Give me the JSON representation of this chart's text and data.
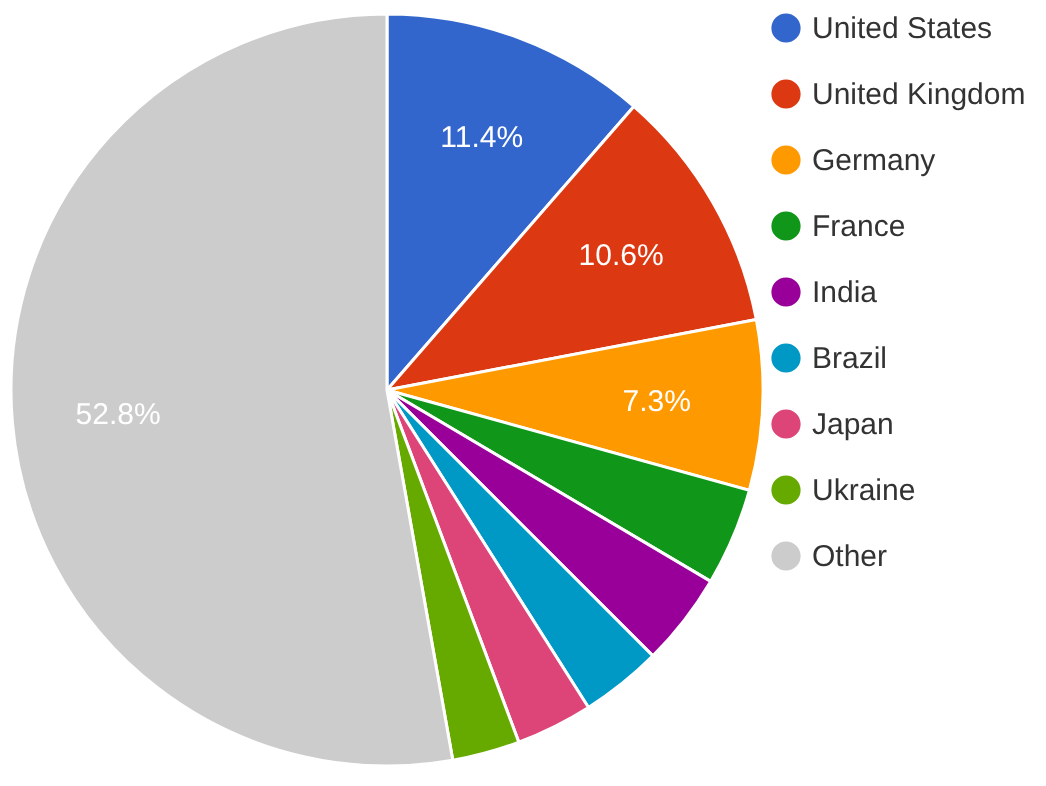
{
  "chart_data": {
    "type": "pie",
    "categories": [
      "United States",
      "United Kingdom",
      "Germany",
      "France",
      "India",
      "Brazil",
      "Japan",
      "Ukraine",
      "Other"
    ],
    "values": [
      11.4,
      10.6,
      7.3,
      4.2,
      4.0,
      3.5,
      3.3,
      2.9,
      52.8
    ],
    "colors": [
      "#3366cc",
      "#dc3912",
      "#ff9900",
      "#109618",
      "#990099",
      "#0099c6",
      "#dd4477",
      "#66aa00",
      "#cccccc"
    ],
    "value_labels": [
      "11.4%",
      "10.6%",
      "7.3%",
      null,
      null,
      null,
      null,
      null,
      "52.8%"
    ],
    "legend": "top right"
  }
}
